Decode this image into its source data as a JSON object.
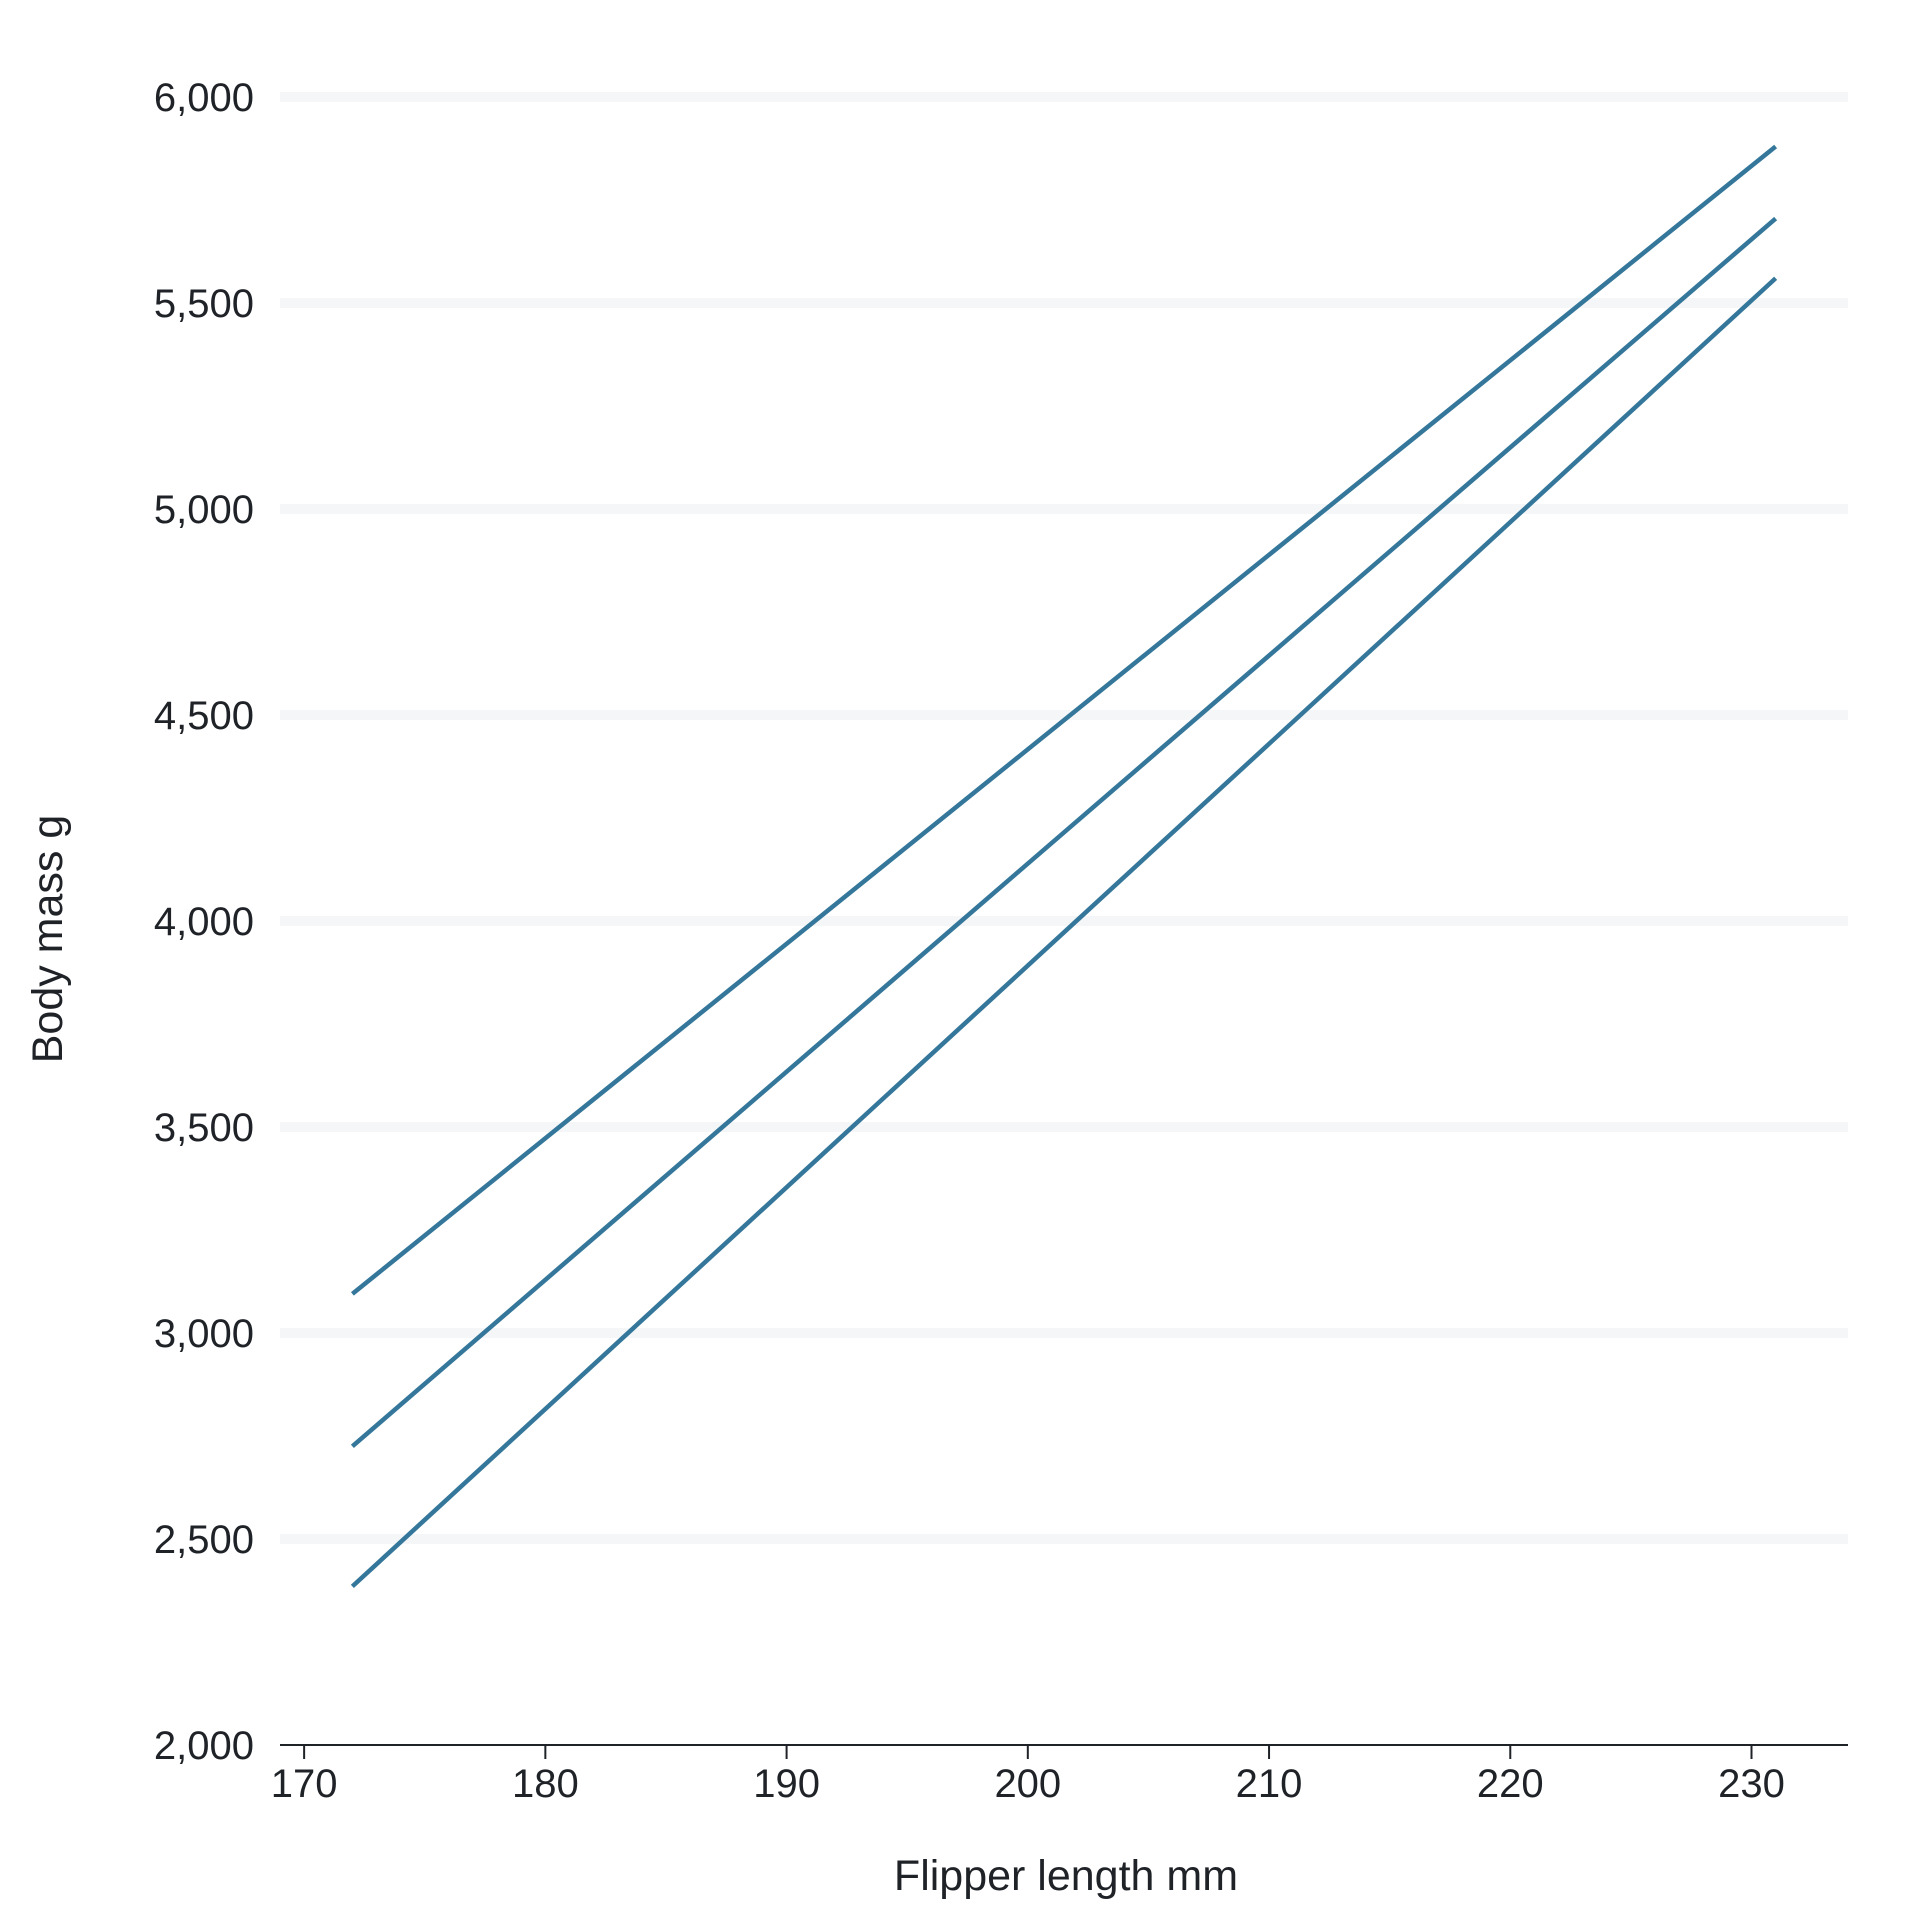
{
  "chart_data": {
    "type": "line",
    "title": "",
    "xlabel": "Flipper length mm",
    "ylabel": "Body mass g",
    "xlim": [
      169,
      234
    ],
    "ylim": [
      2000,
      6000
    ],
    "x_ticks": [
      170,
      180,
      190,
      200,
      210,
      220,
      230
    ],
    "x_tick_labels": [
      "170",
      "180",
      "190",
      "200",
      "210",
      "220",
      "230"
    ],
    "y_ticks": [
      2000,
      2500,
      3000,
      3500,
      4000,
      4500,
      5000,
      5500,
      6000
    ],
    "y_tick_labels": [
      "2,000",
      "2,500",
      "3,000",
      "3,500",
      "4,000",
      "4,500",
      "5,000",
      "5,500",
      "6,000"
    ],
    "grid": "horizontal",
    "legend": "none",
    "series": [
      {
        "x": [
          172,
          231
        ],
        "y": [
          3095,
          5880
        ]
      },
      {
        "x": [
          172,
          231
        ],
        "y": [
          2725,
          5705
        ]
      },
      {
        "x": [
          172,
          231
        ],
        "y": [
          2385,
          5560
        ]
      }
    ]
  },
  "colors": {
    "line": "#34779b",
    "grid": "#f4f6f8",
    "axis": "#1f2328",
    "text": "#1f2328"
  }
}
